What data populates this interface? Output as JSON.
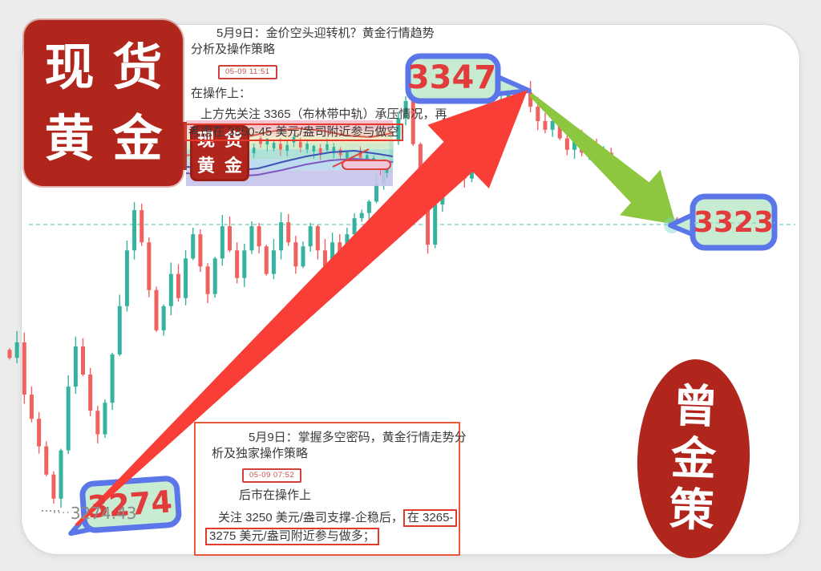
{
  "colors": {
    "page_bg": "#ececec",
    "card_bg": "#ffffff",
    "candle_up": "#35b39f",
    "candle_down": "#f0625f",
    "dashed_line": "#8fd9cc",
    "rally_arrow": "#f83e36",
    "decline_arrow": "#8dc63f",
    "bubble_fill": "#c7ecd2",
    "bubble_stroke": "#5b76e8",
    "bubble_text": "#e23b3b",
    "stamp_red": "#b0261c"
  },
  "top_post": {
    "title_line1": "5月9日：金价空头迎转机？黄金行情趋势",
    "title_line2": "分析及操作策略",
    "timestamp": "05-09 11:51",
    "intro": "在操作上：",
    "body_line1": "上方先关注 3365（布林带中轨）承压情况，再",
    "body_line2_boxed": "考虑在 3350-45 美元/盎司附近参与做空"
  },
  "bottom_post": {
    "title_line1": "5月9日：掌握多空密码，黄金行情走势分",
    "title_line2": "析及独家操作策略",
    "timestamp": "05-09 07:52",
    "intro": "后市在操作上",
    "body_line1_plain": "关注 3250 美元/盎司支撑-企稳后，",
    "body_line1_boxed": "在 3265-",
    "body_line2_boxed": "3275 美元/盎司附近参与做多；"
  },
  "bubbles": {
    "high": "3347",
    "current": "3323",
    "low": "3274"
  },
  "low_price_text": "3274.43",
  "low_price_dots": "····",
  "stamps": {
    "top_left": [
      "现",
      "货",
      "黄",
      "金"
    ],
    "thumb": [
      "现",
      "货",
      "黄",
      "金"
    ],
    "bottom_right": [
      "曾",
      "金",
      "策"
    ]
  },
  "chart_data": {
    "type": "candlestick",
    "instrument_note": "spot gold intraday, prices in USD/oz",
    "closes": [
      3299.8,
      3302.5,
      3293.4,
      3289.2,
      3284.4,
      3279.5,
      3275.3,
      3283.7,
      3294.8,
      3301.8,
      3296.9,
      3290.6,
      3286.5,
      3292.0,
      3300.4,
      3308.8,
      3318.5,
      3325.5,
      3319.9,
      3311.6,
      3304.6,
      3308.8,
      3314.4,
      3310.2,
      3317.1,
      3321.3,
      3315.7,
      3310.9,
      3317.1,
      3322.7,
      3318.5,
      3313.7,
      3318.5,
      3322.7,
      3319.2,
      3314.4,
      3318.5,
      3323.4,
      3319.9,
      3315.7,
      3319.2,
      3322.7,
      3318.5,
      3315.7,
      3319.9,
      3317.1,
      3321.3,
      3324.1,
      3325.0,
      3327.0,
      3330.0,
      3333.5,
      3337.5,
      3341.5,
      3344.5,
      3337.0,
      3327.5,
      3319.5,
      3326.5,
      3332.0,
      3336.5,
      3333.5,
      3331.0,
      3334.5,
      3337.5,
      3340.5,
      3343.0,
      3344.8,
      3345.8,
      3346.3,
      3346.0,
      3343.5,
      3341.0,
      3339.5,
      3341.0,
      3338.0,
      3336.0,
      3337.5,
      3335.5,
      3336.5,
      3334.5,
      3335.5,
      3333.5,
      3331.0,
      3329.0,
      3326.5,
      3327.5,
      3325.5,
      3328.0,
      3325.5,
      3324.0,
      3323.0
    ],
    "session_high": {
      "index": 70,
      "price": 3347.0
    },
    "session_low": {
      "index": 6,
      "price": 3274.43
    },
    "last_price": 3323.0,
    "dashed_line_price": 3323.0,
    "annotations": [
      {
        "text": "3347",
        "price": 3347.0,
        "kind": "high-bubble"
      },
      {
        "text": "3323",
        "price": 3323.0,
        "kind": "current-bubble"
      },
      {
        "text": "3274",
        "price": 3274.43,
        "kind": "low-bubble"
      },
      {
        "text": "3274.43",
        "price": 3274.43,
        "kind": "low-print"
      }
    ],
    "thumbnail_bands": [
      "#f3bcc8",
      "#f6d8c8",
      "#f1e7c0",
      "#cfe9c6",
      "#a9dfd3",
      "#b7d8ee",
      "#c6c4ea"
    ]
  }
}
